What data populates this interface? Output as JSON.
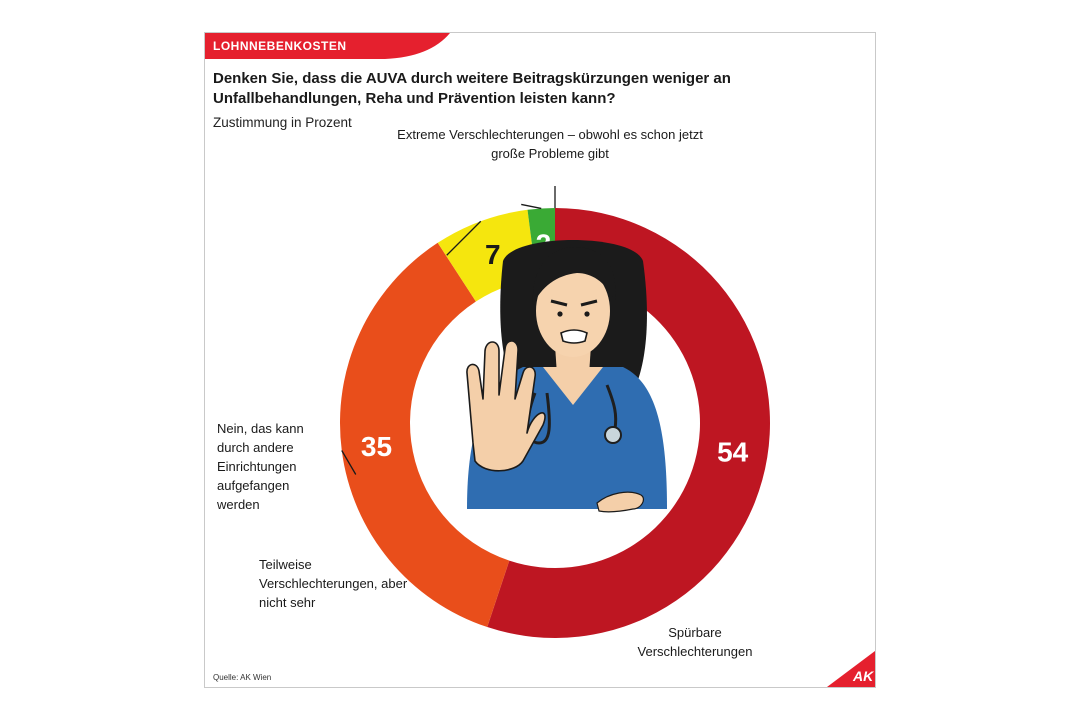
{
  "tag": "LOHNNEBENKOSTEN",
  "title": "Denken Sie, dass die AUVA durch weitere Beitragskürzungen weniger an Unfallbehandlungen,  Reha und Prävention leisten kann?",
  "subtitle": "Zustimmung in Prozent",
  "source": "Quelle: AK Wien",
  "logo_text": "AK",
  "colors": {
    "brand": "#e5202e",
    "dark_red": "#be1622",
    "orange": "#e94e1b",
    "yellow": "#f5e60e",
    "green": "#3aaa35"
  },
  "chart_data": {
    "type": "pie",
    "variant": "donut",
    "start": "12 o'clock, clockwise",
    "unit": "%",
    "slices": [
      {
        "label": "Extreme Verschlechterungen – obwohl es schon jetzt große Probleme gibt",
        "value": 54,
        "color": "#be1622"
      },
      {
        "label": "Spürbare Verschlechterungen",
        "value": 35,
        "color": "#e94e1b"
      },
      {
        "label": "Teilweise Verschlechterungen, aber nicht sehr",
        "value": 7,
        "color": "#f5e60e"
      },
      {
        "label": "Nein, das kann durch andere Einrichtungen aufgefangen werden",
        "value": 2,
        "color": "#3aaa35"
      }
    ],
    "center_image": "illustration of a nurse with a stethoscope holding up her hand in a stop gesture"
  }
}
